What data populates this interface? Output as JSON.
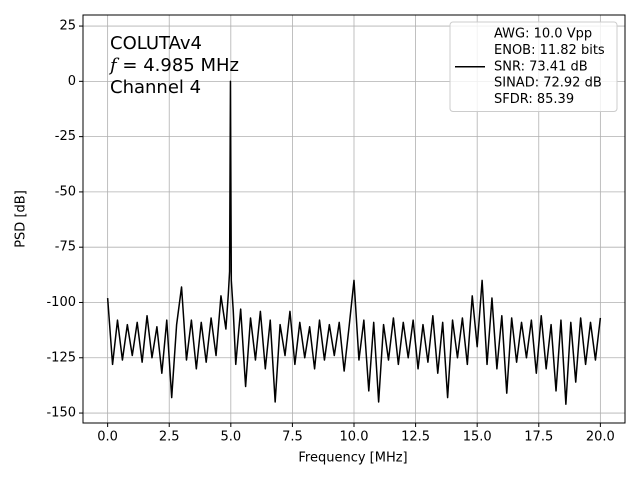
{
  "chart_data": {
    "type": "line",
    "xlabel": "Frequency [MHz]",
    "ylabel": "PSD [dB]",
    "annotation": [
      {
        "text": "COLUTAv4"
      },
      {
        "symbol": "f",
        "text": " = 4.985 MHz"
      },
      {
        "text": "Channel 4"
      }
    ],
    "legend": [
      "AWG: 10.0 Vpp",
      "ENOB: 11.82 bits",
      "SNR: 73.41 dB",
      "SINAD: 72.92 dB",
      "SFDR: 85.39"
    ],
    "legend_position": "upper right",
    "grid": true,
    "xlim": [
      -1.0,
      21.0
    ],
    "ylim": [
      -154.5,
      30
    ],
    "xticks": [
      {
        "value": 0,
        "label": "0.0"
      },
      {
        "value": 2.5,
        "label": "2.5"
      },
      {
        "value": 5,
        "label": "5.0"
      },
      {
        "value": 7.5,
        "label": "7.5"
      },
      {
        "value": 10,
        "label": "10.0"
      },
      {
        "value": 12.5,
        "label": "12.5"
      },
      {
        "value": 15,
        "label": "15.0"
      },
      {
        "value": 17.5,
        "label": "17.5"
      },
      {
        "value": 20,
        "label": "20.0"
      }
    ],
    "yticks": [
      25,
      0,
      -25,
      -50,
      -75,
      -100,
      -125,
      -150
    ],
    "x": [
      0,
      0.2,
      0.4,
      0.6,
      0.8,
      1.0,
      1.2,
      1.4,
      1.6,
      1.8,
      2.0,
      2.2,
      2.4,
      2.6,
      2.8,
      3.0,
      3.2,
      3.4,
      3.6,
      3.8,
      4.0,
      4.2,
      4.4,
      4.6,
      4.8,
      4.9,
      4.95,
      4.985,
      5.02,
      5.1,
      5.2,
      5.4,
      5.6,
      5.8,
      6.0,
      6.2,
      6.4,
      6.6,
      6.8,
      7.0,
      7.2,
      7.4,
      7.6,
      7.8,
      8.0,
      8.2,
      8.4,
      8.6,
      8.8,
      9.0,
      9.2,
      9.4,
      9.6,
      9.8,
      10.0,
      10.2,
      10.4,
      10.6,
      10.8,
      11.0,
      11.2,
      11.4,
      11.6,
      11.8,
      12.0,
      12.2,
      12.4,
      12.6,
      12.8,
      13.0,
      13.2,
      13.4,
      13.6,
      13.8,
      14.0,
      14.2,
      14.4,
      14.6,
      14.8,
      15.0,
      15.2,
      15.4,
      15.6,
      15.8,
      16.0,
      16.2,
      16.4,
      16.6,
      16.8,
      17.0,
      17.2,
      17.4,
      17.6,
      17.8,
      18.0,
      18.2,
      18.4,
      18.6,
      18.8,
      19.0,
      19.2,
      19.4,
      19.6,
      19.8,
      20.0
    ],
    "series": [
      {
        "color": "#000000",
        "values": [
          -98,
          -128,
          -108,
          -126,
          -110,
          -124,
          -109,
          -127,
          -106,
          -125,
          -111,
          -132,
          -108,
          -143,
          -110,
          -93,
          -126,
          -108,
          -130,
          -109,
          -127,
          -107,
          -124,
          -97,
          -112,
          -96,
          -86,
          0,
          -90,
          -104,
          -128,
          -103,
          -138,
          -107,
          -126,
          -104,
          -130,
          -108,
          -145,
          -110,
          -124,
          -104,
          -128,
          -109,
          -125,
          -111,
          -130,
          -108,
          -126,
          -110,
          -124,
          -109,
          -131,
          -111,
          -90,
          -126,
          -108,
          -140,
          -109,
          -145,
          -110,
          -126,
          -107,
          -128,
          -109,
          -125,
          -108,
          -130,
          -110,
          -127,
          -106,
          -132,
          -109,
          -143,
          -108,
          -125,
          -107,
          -128,
          -97,
          -120,
          -90,
          -128,
          -98,
          -130,
          -106,
          -141,
          -107,
          -127,
          -109,
          -125,
          -108,
          -132,
          -106,
          -130,
          -110,
          -140,
          -108,
          -146,
          -109,
          -136,
          -107,
          -128,
          -109,
          -126,
          -107
        ]
      }
    ]
  }
}
